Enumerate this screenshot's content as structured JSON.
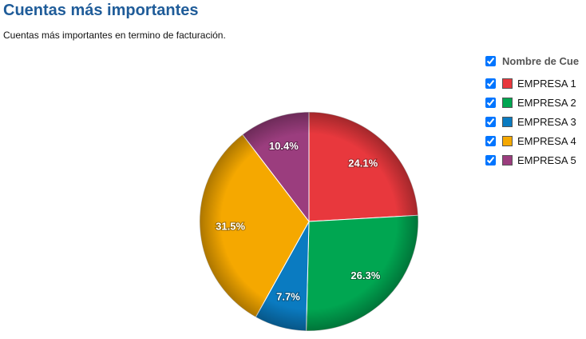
{
  "chart_data": {
    "type": "pie",
    "title": "Cuentas más importantes",
    "subtitle": "Cuentas más importantes en termino de facturación.",
    "legend_title": "Nombre de Cue",
    "categories": [
      "EMPRESA 1",
      "EMPRESA 2",
      "EMPRESA 3",
      "EMPRESA 4",
      "EMPRESA 5"
    ],
    "values": [
      24.1,
      26.3,
      7.7,
      31.5,
      10.4
    ],
    "value_labels": [
      "24.1%",
      "26.3%",
      "7.7%",
      "31.5%",
      "10.4%"
    ],
    "colors": [
      "#e8383d",
      "#00a651",
      "#0a7bc1",
      "#f5a800",
      "#9b3d7e"
    ]
  }
}
